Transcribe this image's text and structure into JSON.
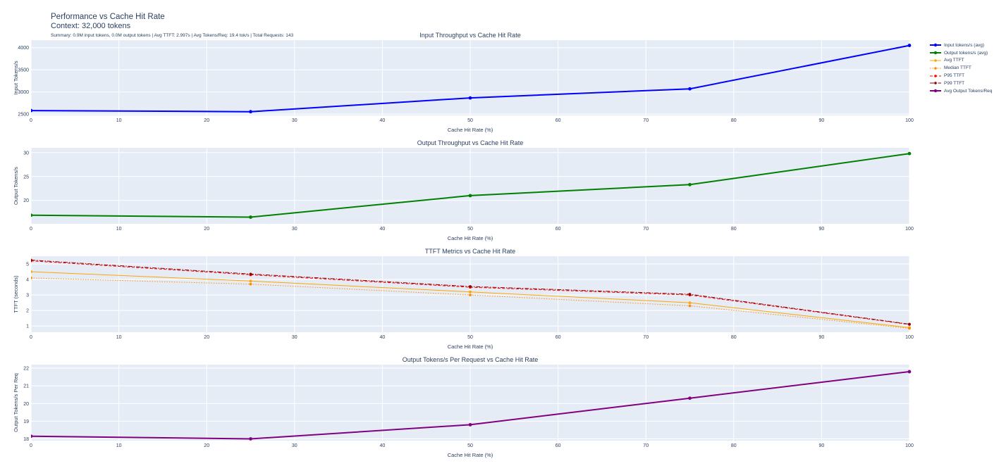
{
  "figure": {
    "title": "Performance vs Cache Hit Rate",
    "subtitle": "Context: 32,000 tokens",
    "summary": "Summary: 0.9M input tokens, 0.0M output tokens | Avg TTFT: 2.997s | Avg Tokens/Req: 19.4 tok/s | Total Requests: 143"
  },
  "legend": [
    {
      "name": "Input tokens/s (avg)",
      "color": "#0000ff",
      "dash": "solid",
      "width": 2
    },
    {
      "name": "Output tokens/s (avg)",
      "color": "#008000",
      "dash": "solid",
      "width": 2
    },
    {
      "name": "Avg TTFT",
      "color": "#ffa500",
      "dash": "solid",
      "width": 1
    },
    {
      "name": "Median TTFT",
      "color": "#ff8c00",
      "dash": "dot",
      "width": 1
    },
    {
      "name": "P95 TTFT",
      "color": "#ff0000",
      "dash": "dash",
      "width": 1
    },
    {
      "name": "P99 TTFT",
      "color": "#8b0000",
      "dash": "dashdot",
      "width": 1
    },
    {
      "name": "Avg Output Tokens/Req",
      "color": "#800080",
      "dash": "solid",
      "width": 2
    }
  ],
  "chart_data": [
    {
      "type": "line",
      "title": "Input Throughput vs Cache Hit Rate",
      "xlabel": "Cache Hit Rate (%)",
      "ylabel": "Input Tokens/s",
      "x": [
        0,
        25,
        50,
        75,
        100
      ],
      "xlim": [
        0,
        100
      ],
      "xticks": [
        0,
        10,
        20,
        30,
        40,
        50,
        60,
        70,
        80,
        90,
        100
      ],
      "ylim": [
        2470,
        4170
      ],
      "yticks": [
        2500,
        3000,
        3500,
        4000
      ],
      "grid": true,
      "series": [
        {
          "name": "Input tokens/s (avg)",
          "values": [
            2580,
            2555,
            2865,
            3070,
            4050
          ],
          "color": "#0000ff",
          "dash": "solid",
          "width": 2
        }
      ]
    },
    {
      "type": "line",
      "title": "Output Throughput vs Cache Hit Rate",
      "xlabel": "Cache Hit Rate (%)",
      "ylabel": "Output Tokens/s",
      "x": [
        0,
        25,
        50,
        75,
        100
      ],
      "xlim": [
        0,
        100
      ],
      "xticks": [
        0,
        10,
        20,
        30,
        40,
        50,
        60,
        70,
        80,
        90,
        100
      ],
      "ylim": [
        15.1,
        31.0
      ],
      "yticks": [
        20,
        25,
        30
      ],
      "grid": true,
      "series": [
        {
          "name": "Output tokens/s (avg)",
          "values": [
            16.9,
            16.5,
            21.0,
            23.3,
            29.8
          ],
          "color": "#008000",
          "dash": "solid",
          "width": 2
        }
      ]
    },
    {
      "type": "line",
      "title": "TTFT Metrics vs Cache Hit Rate",
      "xlabel": "Cache Hit Rate (%)",
      "ylabel": "TTFT (seconds)",
      "x": [
        0,
        25,
        50,
        75,
        100
      ],
      "xlim": [
        0,
        100
      ],
      "xticks": [
        0,
        10,
        20,
        30,
        40,
        50,
        60,
        70,
        80,
        90,
        100
      ],
      "ylim": [
        0.6,
        5.5
      ],
      "yticks": [
        1,
        2,
        3,
        4,
        5
      ],
      "grid": true,
      "series": [
        {
          "name": "Avg TTFT",
          "values": [
            4.5,
            3.9,
            3.2,
            2.5,
            0.9
          ],
          "color": "#ffa500",
          "dash": "solid",
          "width": 1
        },
        {
          "name": "Median TTFT",
          "values": [
            4.1,
            3.7,
            3.0,
            2.3,
            0.85
          ],
          "color": "#ff8c00",
          "dash": "dot",
          "width": 1
        },
        {
          "name": "P95 TTFT",
          "values": [
            5.2,
            4.3,
            3.5,
            3.0,
            1.1
          ],
          "color": "#ff0000",
          "dash": "dash",
          "width": 1
        },
        {
          "name": "P99 TTFT",
          "values": [
            5.25,
            4.35,
            3.55,
            3.05,
            1.12
          ],
          "color": "#8b0000",
          "dash": "dashdot",
          "width": 1
        }
      ]
    },
    {
      "type": "line",
      "title": "Output Tokens/s Per Request vs Cache Hit Rate",
      "xlabel": "Cache Hit Rate (%)",
      "ylabel": "Output Tokens/s Per Req",
      "x": [
        0,
        25,
        50,
        75,
        100
      ],
      "xlim": [
        0,
        100
      ],
      "xticks": [
        0,
        10,
        20,
        30,
        40,
        50,
        60,
        70,
        80,
        90,
        100
      ],
      "ylim": [
        17.9,
        22.2
      ],
      "yticks": [
        18,
        19,
        20,
        21,
        22
      ],
      "grid": true,
      "series": [
        {
          "name": "Avg Output Tokens/Req",
          "values": [
            18.15,
            18.0,
            18.8,
            20.3,
            21.8
          ],
          "color": "#800080",
          "dash": "solid",
          "width": 2
        }
      ]
    }
  ]
}
